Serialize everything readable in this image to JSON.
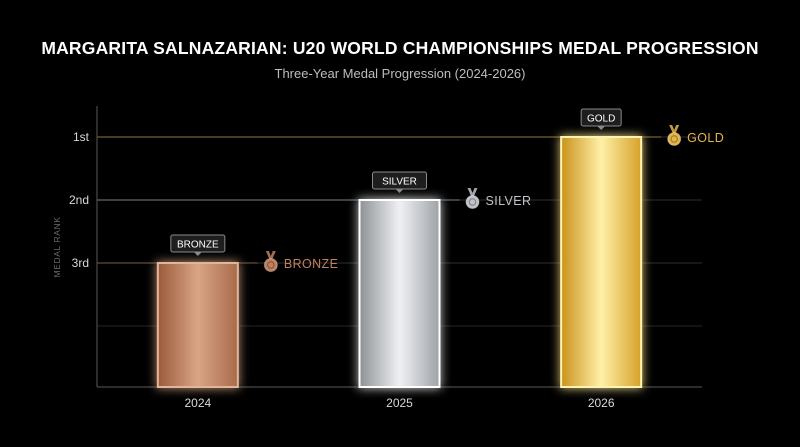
{
  "chart_data": {
    "type": "bar",
    "title": "MARGARITA SALNAZARIAN: U20 WORLD CHAMPIONSHIPS MEDAL PROGRESSION",
    "subtitle": "Three-Year Medal Progression (2024-2026)",
    "xlabel": "",
    "ylabel": "MEDAL RANK",
    "categories": [
      "2024",
      "2025",
      "2026"
    ],
    "values": [
      3,
      2,
      1
    ],
    "y_ticks": [
      {
        "value": 1,
        "label": "1st"
      },
      {
        "value": 2,
        "label": "2nd"
      },
      {
        "value": 3,
        "label": "3rd"
      }
    ],
    "bar_tags": [
      "BRONZE",
      "SILVER",
      "GOLD"
    ],
    "medal_labels": [
      "BRONZE",
      "SILVER",
      "GOLD"
    ],
    "medal_colors": [
      "#c08060",
      "#bfc3c8",
      "#e2b548"
    ],
    "ylim_rank": [
      5,
      1
    ],
    "grid": true,
    "y_axis_reversed": true
  }
}
